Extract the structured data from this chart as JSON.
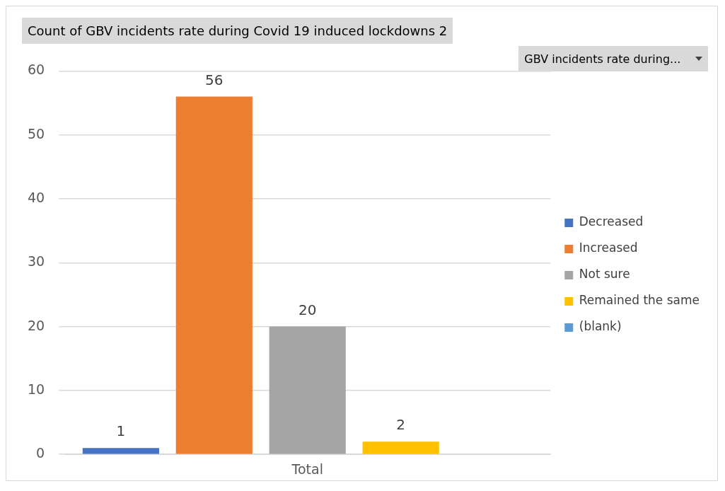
{
  "chart_data": {
    "type": "bar",
    "title": "Count of GBV incidents rate during Covid 19 induced lockdowns 2",
    "legend_title": "GBV incidents rate during...",
    "categories": [
      "Total"
    ],
    "series": [
      {
        "name": "Decreased",
        "color": "#4472c4",
        "values": [
          1
        ]
      },
      {
        "name": "Increased",
        "color": "#ed7d31",
        "values": [
          56
        ]
      },
      {
        "name": "Not sure",
        "color": "#a5a5a5",
        "values": [
          20
        ]
      },
      {
        "name": "Remained the same",
        "color": "#ffc000",
        "values": [
          2
        ]
      },
      {
        "name": "(blank)",
        "color": "#5b9bd5",
        "values": [
          null
        ]
      }
    ],
    "ylim": [
      0,
      60
    ],
    "yticks": [
      0,
      10,
      20,
      30,
      40,
      50,
      60
    ],
    "grid": "y",
    "legend": "right",
    "data_labels": true
  }
}
